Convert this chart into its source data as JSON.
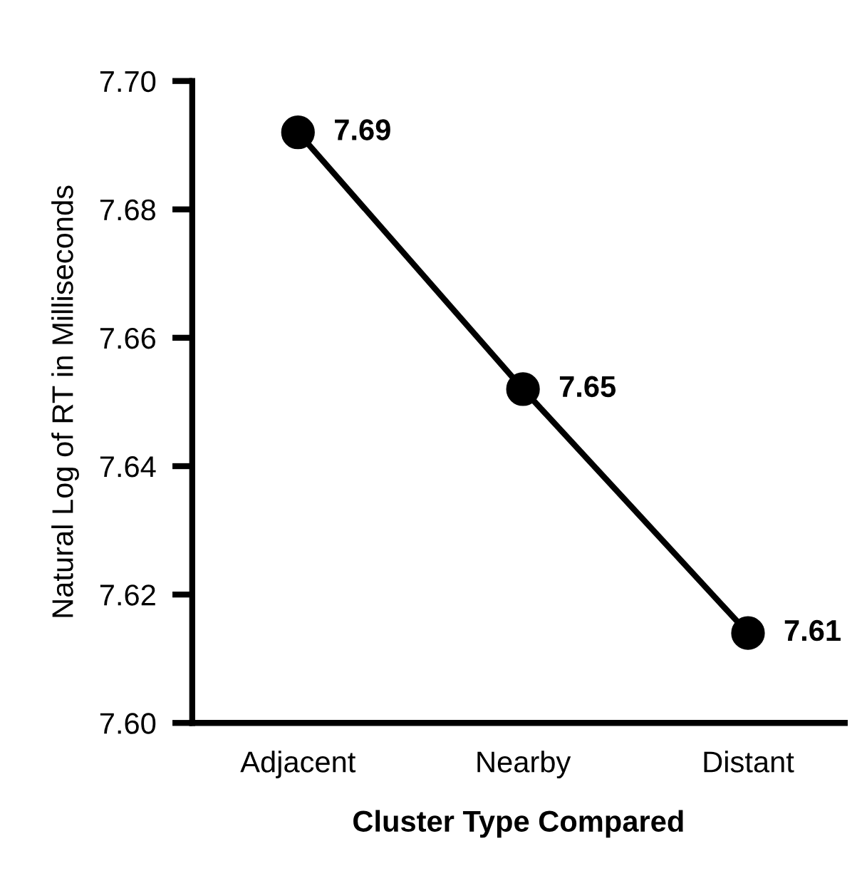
{
  "chart_data": {
    "type": "line",
    "xlabel": "Cluster Type Compared",
    "ylabel": "Natural Log of RT in Milliseconds",
    "categories": [
      "Adjacent",
      "Nearby",
      "Distant"
    ],
    "series": [
      {
        "color": "#000000",
        "values": [
          7.692,
          7.652,
          7.614
        ],
        "value_labels": [
          "7.69",
          "7.65",
          "7.61"
        ]
      }
    ],
    "ylim": [
      7.6,
      7.7
    ],
    "yticks": [
      {
        "value": 7.6,
        "label": "7.60"
      },
      {
        "value": 7.62,
        "label": "7.62"
      },
      {
        "value": 7.64,
        "label": "7.64"
      },
      {
        "value": 7.66,
        "label": "7.66"
      },
      {
        "value": 7.68,
        "label": "7.68"
      },
      {
        "value": 7.7,
        "label": "7.70"
      }
    ],
    "marker": "circle",
    "line_style": "solid",
    "grid": false,
    "legend": false
  }
}
